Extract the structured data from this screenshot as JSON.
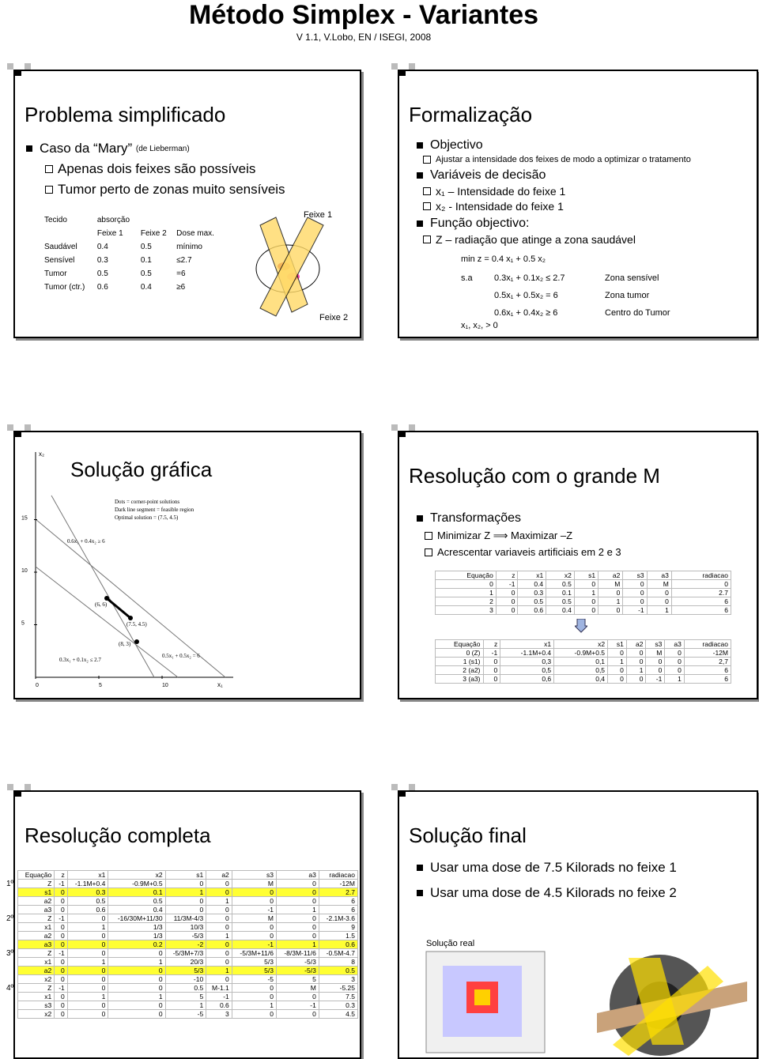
{
  "header": {
    "title": "Método Simplex  - Variantes",
    "subtitle": "V 1.1, V.Lobo, EN / ISEGI, 2008"
  },
  "slides": [
    {
      "title": "Problema simplificado",
      "bullet": "Caso da “Mary”",
      "bullet_note": "(de Lieberman)",
      "items": [
        "Apenas dois feixes são possíveis",
        "Tumor perto de zonas muito sensíveis"
      ],
      "table": {
        "header": [
          "Tecido",
          "absorção"
        ],
        "subheader": [
          "Feixe 1",
          "Feixe 2",
          "Dose max."
        ],
        "rows": [
          [
            "Saudável",
            "0.4",
            "0.5",
            "mínimo"
          ],
          [
            "Sensível",
            "0.3",
            "0.1",
            "≤2.7"
          ],
          [
            "Tumor",
            "0.5",
            "0.5",
            "=6"
          ],
          [
            "Tumor (ctr.)",
            "0.6",
            "0.4",
            "≥6"
          ]
        ]
      },
      "figure_labels": [
        "Feixe 1",
        "Feixe 2"
      ]
    },
    {
      "title": "Formalização",
      "sections": [
        {
          "bullet": "Objectivo",
          "items": [
            "Ajustar a intensidade dos feixes de modo a optimizar o tratamento"
          ]
        },
        {
          "bullet": "Variáveis de decisão",
          "items": [
            "x₁ – Intensidade do feixe 1",
            "x₂ - Intensidade do feixe 1"
          ]
        },
        {
          "bullet": "Função objectivo:",
          "items": [
            "Z – radiação que atinge a zona saudável"
          ]
        }
      ],
      "model": {
        "objective": "min z = 0.4 x₁ + 0.5 x₂",
        "st": "s.a",
        "constraints": [
          {
            "expr": "0.3x₁ + 0.1x₂ ≤ 2.7",
            "label": "Zona sensível"
          },
          {
            "expr": "0.5x₁ + 0.5x₂ = 6",
            "label": "Zona tumor"
          },
          {
            "expr": "0.6x₁ + 0.4x₂ ≥ 6",
            "label": "Centro do Tumor"
          }
        ],
        "nonneg": "x₁, x₂, > 0"
      }
    },
    {
      "title": "Solução gráfica",
      "graph": {
        "legend": [
          "Dots = corner-point solutions",
          "Dark line segment = feasible region",
          "Optimal solution = (7.5, 4.5)"
        ],
        "labels": [
          "0.6x₁ + 0.4x₂ ≥ 6",
          "(6, 6)",
          "(7.5, 4.5)",
          "(8, 3)",
          "0.3x₁ + 0.1x₂ ≤ 2.7",
          "0.5x₁ + 0.5x₂ = 6"
        ],
        "yticks": [
          5,
          10,
          15
        ],
        "xticks": [
          0,
          5,
          10
        ],
        "xlabel": "x₁",
        "ylabel": "x₂"
      }
    },
    {
      "title": "Resolução com o grande M",
      "bullet": "Transformações",
      "items": [
        "Minimizar Z ⟹ Maximizar –Z",
        "Acrescentar variaveis artificiais em 2 e 3"
      ],
      "tables": [
        {
          "header": [
            "Equação",
            "z",
            "x1",
            "x2",
            "s1",
            "a2",
            "s3",
            "a3",
            "radiacao"
          ],
          "rows": [
            [
              "0",
              "-1",
              "0.4",
              "0.5",
              "0",
              "M",
              "0",
              "M",
              "0"
            ],
            [
              "1",
              "0",
              "0.3",
              "0.1",
              "1",
              "0",
              "0",
              "0",
              "2.7"
            ],
            [
              "2",
              "0",
              "0.5",
              "0.5",
              "0",
              "1",
              "0",
              "0",
              "6"
            ],
            [
              "3",
              "0",
              "0.6",
              "0.4",
              "0",
              "0",
              "-1",
              "1",
              "6"
            ]
          ]
        },
        {
          "header": [
            "Equação",
            "z",
            "x1",
            "x2",
            "s1",
            "a2",
            "s3",
            "a3",
            "radiacao"
          ],
          "rows": [
            [
              "0 (Z)",
              "-1",
              "-1.1M+0.4",
              "-0.9M+0.5",
              "0",
              "0",
              "M",
              "0",
              "-12M"
            ],
            [
              "1 (s1)",
              "0",
              "0,3",
              "0,1",
              "1",
              "0",
              "0",
              "0",
              "2,7"
            ],
            [
              "2 (a2)",
              "0",
              "0,5",
              "0,5",
              "0",
              "1",
              "0",
              "0",
              "6"
            ],
            [
              "3 (a3)",
              "0",
              "0,6",
              "0,4",
              "0",
              "0",
              "-1",
              "1",
              "6"
            ]
          ]
        }
      ]
    },
    {
      "title": "Resolução completa",
      "table": {
        "header": [
          "Equação",
          "z",
          "x1",
          "x2",
          "s1",
          "a2",
          "s3",
          "a3",
          "radiacao"
        ],
        "blocks": [
          {
            "label": "1º",
            "highlighted_row": 1,
            "rows": [
              [
                "Z",
                "-1",
                "-1.1M+0.4",
                "-0.9M+0.5",
                "0",
                "0",
                "M",
                "0",
                "-12M"
              ],
              [
                "s1",
                "0",
                "0.3",
                "0.1",
                "1",
                "0",
                "0",
                "0",
                "2.7"
              ],
              [
                "a2",
                "0",
                "0.5",
                "0.5",
                "0",
                "1",
                "0",
                "0",
                "6"
              ],
              [
                "a3",
                "0",
                "0.6",
                "0.4",
                "0",
                "0",
                "-1",
                "1",
                "6"
              ]
            ]
          },
          {
            "label": "2º",
            "highlighted_row": 3,
            "rows": [
              [
                "Z",
                "-1",
                "0",
                "-16/30M+11/30",
                "11/3M-4/3",
                "0",
                "M",
                "0",
                "-2.1M-3.6"
              ],
              [
                "x1",
                "0",
                "1",
                "1/3",
                "10/3",
                "0",
                "0",
                "0",
                "9"
              ],
              [
                "a2",
                "0",
                "0",
                "1/3",
                "-5/3",
                "1",
                "0",
                "0",
                "1.5"
              ],
              [
                "a3",
                "0",
                "0",
                "0.2",
                "-2",
                "0",
                "-1",
                "1",
                "0.6"
              ]
            ]
          },
          {
            "label": "3º",
            "highlighted_row": 2,
            "rows": [
              [
                "Z",
                "-1",
                "0",
                "0",
                "-5/3M+7/3",
                "0",
                "-5/3M+11/6",
                "-8/3M-11/6",
                "-0.5M-4.7"
              ],
              [
                "x1",
                "0",
                "1",
                "1",
                "20/3",
                "0",
                "5/3",
                "-5/3",
                "8"
              ],
              [
                "a2",
                "0",
                "0",
                "0",
                "5/3",
                "1",
                "5/3",
                "-5/3",
                "0.5"
              ],
              [
                "x2",
                "0",
                "0",
                "0",
                "-10",
                "0",
                "-5",
                "5",
                "3"
              ]
            ]
          },
          {
            "label": "4º",
            "highlighted_row": -1,
            "rows": [
              [
                "Z",
                "-1",
                "0",
                "0",
                "0.5",
                "M-1.1",
                "0",
                "M",
                "-5.25"
              ],
              [
                "x1",
                "0",
                "1",
                "1",
                "5",
                "-1",
                "0",
                "0",
                "7.5"
              ],
              [
                "s3",
                "0",
                "0",
                "0",
                "1",
                "0.6",
                "1",
                "-1",
                "0.3"
              ],
              [
                "x2",
                "0",
                "0",
                "0",
                "-5",
                "3",
                "0",
                "0",
                "4.5"
              ]
            ]
          }
        ]
      }
    },
    {
      "title": "Solução final",
      "bullets": [
        "Usar uma dose de 7.5 Kilorads no feixe 1",
        "Usar uma dose de 4.5 Kilorads no feixe 2"
      ],
      "caption": "Solução real"
    }
  ]
}
